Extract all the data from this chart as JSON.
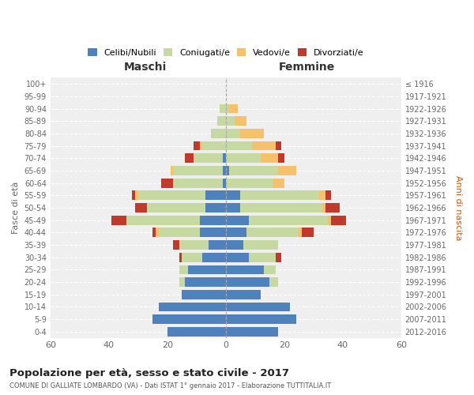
{
  "age_groups": [
    "0-4",
    "5-9",
    "10-14",
    "15-19",
    "20-24",
    "25-29",
    "30-34",
    "35-39",
    "40-44",
    "45-49",
    "50-54",
    "55-59",
    "60-64",
    "65-69",
    "70-74",
    "75-79",
    "80-84",
    "85-89",
    "90-94",
    "95-99",
    "100+"
  ],
  "birth_years": [
    "2012-2016",
    "2007-2011",
    "2002-2006",
    "1997-2001",
    "1992-1996",
    "1987-1991",
    "1982-1986",
    "1977-1981",
    "1972-1976",
    "1967-1971",
    "1962-1966",
    "1957-1961",
    "1952-1956",
    "1947-1951",
    "1942-1946",
    "1937-1941",
    "1932-1936",
    "1927-1931",
    "1922-1926",
    "1917-1921",
    "≤ 1916"
  ],
  "male_celibi": [
    20,
    25,
    23,
    15,
    14,
    13,
    8,
    6,
    9,
    9,
    7,
    7,
    1,
    1,
    1,
    0,
    0,
    0,
    0,
    0,
    0
  ],
  "male_coniugati": [
    0,
    0,
    0,
    0,
    2,
    3,
    7,
    10,
    14,
    25,
    20,
    23,
    17,
    17,
    10,
    8,
    5,
    3,
    2,
    0,
    0
  ],
  "male_vedovi": [
    0,
    0,
    0,
    0,
    0,
    0,
    0,
    0,
    1,
    0,
    0,
    1,
    0,
    1,
    0,
    1,
    0,
    0,
    0,
    0,
    0
  ],
  "male_divorziati": [
    0,
    0,
    0,
    0,
    0,
    0,
    1,
    2,
    1,
    5,
    4,
    1,
    4,
    0,
    3,
    2,
    0,
    0,
    0,
    0,
    0
  ],
  "female_nubili": [
    18,
    24,
    22,
    12,
    15,
    13,
    8,
    6,
    7,
    8,
    5,
    5,
    0,
    1,
    0,
    0,
    0,
    0,
    0,
    0,
    0
  ],
  "female_coniugate": [
    0,
    0,
    0,
    0,
    3,
    4,
    9,
    12,
    18,
    27,
    28,
    27,
    16,
    17,
    12,
    9,
    5,
    3,
    1,
    0,
    0
  ],
  "female_vedove": [
    0,
    0,
    0,
    0,
    0,
    0,
    0,
    0,
    1,
    1,
    1,
    2,
    4,
    6,
    6,
    8,
    8,
    4,
    3,
    0,
    0
  ],
  "female_divorziate": [
    0,
    0,
    0,
    0,
    0,
    0,
    2,
    0,
    4,
    5,
    5,
    2,
    0,
    0,
    2,
    2,
    0,
    0,
    0,
    0,
    0
  ],
  "color_celibi": "#4f81bd",
  "color_coniugati": "#c5d9a0",
  "color_vedovi": "#f5c26b",
  "color_divorziati": "#c0392b",
  "xlim": 60,
  "title": "Popolazione per età, sesso e stato civile - 2017",
  "subtitle": "COMUNE DI GALLIATE LOMBARDO (VA) - Dati ISTAT 1° gennaio 2017 - Elaborazione TUTTITALIA.IT",
  "label_maschi": "Maschi",
  "label_femmine": "Femmine",
  "ylabel_left": "Fasce di età",
  "ylabel_right": "Anni di nascita",
  "legend_labels": [
    "Celibi/Nubili",
    "Coniugati/e",
    "Vedovi/e",
    "Divorziati/e"
  ],
  "bar_height": 0.75,
  "axes_bg": "#efefef",
  "fig_bg": "#ffffff",
  "grid_color": "#ffffff",
  "grid_linestyle": "--"
}
